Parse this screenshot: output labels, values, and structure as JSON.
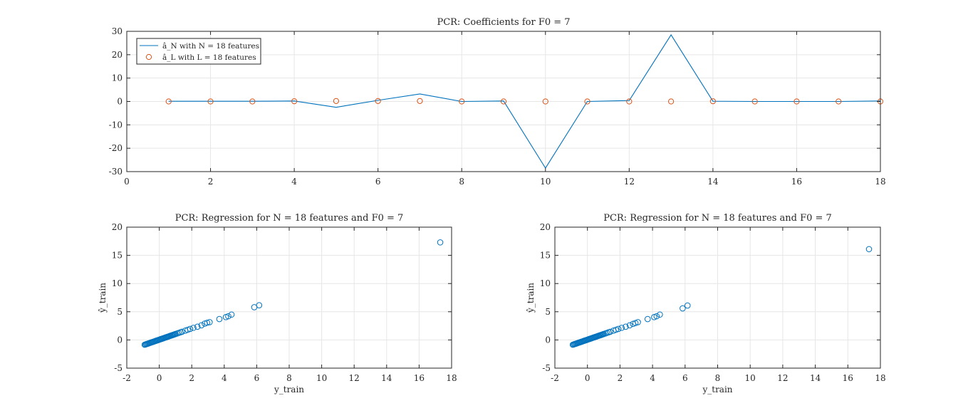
{
  "chart_data": [
    {
      "type": "line",
      "title": "PCR: Coefficients for F0 = 7",
      "xlabel": "",
      "ylabel": "",
      "xlim": [
        0,
        18
      ],
      "ylim": [
        -30,
        30
      ],
      "xticks": [
        0,
        2,
        4,
        6,
        8,
        10,
        12,
        14,
        16,
        18
      ],
      "yticks": [
        -30,
        -20,
        -10,
        0,
        10,
        20,
        30
      ],
      "grid": true,
      "legend_position": "top-left",
      "series": [
        {
          "name": "â_N with N = 18 features",
          "marker": "none",
          "color": "#0072BD",
          "x": [
            1,
            2,
            3,
            4,
            5,
            6,
            7,
            8,
            9,
            10,
            11,
            12,
            13,
            14,
            15,
            16,
            17,
            18
          ],
          "y": [
            0.1,
            0.1,
            0.1,
            0.2,
            -2.5,
            0.5,
            3.2,
            0,
            0.2,
            -28.5,
            0,
            0.4,
            28.5,
            0.1,
            0,
            0,
            0,
            0.2
          ]
        },
        {
          "name": "â_L with L = 18 features",
          "marker": "circle",
          "color": "#D95319",
          "x": [
            1,
            2,
            3,
            4,
            5,
            6,
            7,
            8,
            9,
            10,
            11,
            12,
            13,
            14,
            15,
            16,
            17,
            18
          ],
          "y": [
            0,
            0,
            0,
            0.1,
            0.2,
            0.2,
            0.2,
            0,
            0,
            0,
            0,
            0,
            0,
            0.1,
            0,
            0,
            0,
            0
          ]
        }
      ]
    },
    {
      "type": "scatter",
      "title": "PCR: Regression for N = 18 features and F0 = 7",
      "xlabel": "y_train",
      "ylabel": "ŷ_train",
      "xlim": [
        -2,
        18
      ],
      "ylim": [
        -5,
        20
      ],
      "xticks": [
        -2,
        0,
        2,
        4,
        6,
        8,
        10,
        12,
        14,
        16,
        18
      ],
      "yticks": [
        -5,
        0,
        5,
        10,
        15,
        20
      ],
      "grid": true,
      "color": "#0072BD",
      "x": [
        -0.9,
        -0.85,
        -0.8,
        -0.75,
        -0.7,
        -0.65,
        -0.6,
        -0.55,
        -0.5,
        -0.45,
        -0.4,
        -0.35,
        -0.3,
        -0.25,
        -0.2,
        -0.15,
        -0.1,
        -0.05,
        0,
        0.05,
        0.1,
        0.15,
        0.2,
        0.25,
        0.3,
        0.35,
        0.4,
        0.45,
        0.5,
        0.55,
        0.6,
        0.65,
        0.7,
        0.75,
        0.8,
        0.85,
        0.9,
        0.95,
        1.0,
        1.1,
        1.2,
        1.3,
        1.4,
        1.6,
        1.75,
        1.9,
        2.1,
        2.35,
        2.6,
        2.8,
        2.95,
        3.1,
        3.7,
        4.1,
        4.25,
        4.45,
        5.85,
        6.15,
        17.3
      ],
      "y": [
        -0.85,
        -0.8,
        -0.75,
        -0.7,
        -0.65,
        -0.6,
        -0.55,
        -0.5,
        -0.45,
        -0.4,
        -0.35,
        -0.3,
        -0.25,
        -0.2,
        -0.15,
        -0.1,
        -0.05,
        0,
        0.05,
        0.1,
        0.15,
        0.2,
        0.25,
        0.3,
        0.35,
        0.4,
        0.45,
        0.5,
        0.55,
        0.6,
        0.65,
        0.7,
        0.75,
        0.8,
        0.85,
        0.9,
        0.95,
        1.0,
        1.05,
        1.15,
        1.25,
        1.35,
        1.45,
        1.65,
        1.8,
        1.95,
        2.15,
        2.35,
        2.6,
        2.9,
        3.05,
        3.15,
        3.7,
        4.05,
        4.2,
        4.5,
        5.8,
        6.15,
        17.3
      ]
    },
    {
      "type": "scatter",
      "title": "PCR: Regression for N = 18 features and F0 = 7",
      "xlabel": "y_train",
      "ylabel": "ŷ_train",
      "xlim": [
        -2,
        18
      ],
      "ylim": [
        -5,
        20
      ],
      "xticks": [
        -2,
        0,
        2,
        4,
        6,
        8,
        10,
        12,
        14,
        16,
        18
      ],
      "yticks": [
        -5,
        0,
        5,
        10,
        15,
        20
      ],
      "grid": true,
      "color": "#0072BD",
      "x": [
        -0.9,
        -0.85,
        -0.8,
        -0.75,
        -0.7,
        -0.65,
        -0.6,
        -0.55,
        -0.5,
        -0.45,
        -0.4,
        -0.35,
        -0.3,
        -0.25,
        -0.2,
        -0.15,
        -0.1,
        -0.05,
        0,
        0.05,
        0.1,
        0.15,
        0.2,
        0.25,
        0.3,
        0.35,
        0.4,
        0.45,
        0.5,
        0.55,
        0.6,
        0.65,
        0.7,
        0.75,
        0.8,
        0.85,
        0.9,
        0.95,
        1.0,
        1.1,
        1.2,
        1.3,
        1.4,
        1.6,
        1.75,
        1.9,
        2.1,
        2.35,
        2.6,
        2.8,
        2.95,
        3.1,
        3.7,
        4.1,
        4.25,
        4.45,
        5.85,
        6.15,
        17.3
      ],
      "y": [
        -0.85,
        -0.8,
        -0.75,
        -0.7,
        -0.65,
        -0.6,
        -0.55,
        -0.5,
        -0.45,
        -0.4,
        -0.35,
        -0.3,
        -0.25,
        -0.2,
        -0.15,
        -0.1,
        -0.05,
        0,
        0.05,
        0.1,
        0.15,
        0.2,
        0.25,
        0.3,
        0.35,
        0.4,
        0.45,
        0.5,
        0.55,
        0.6,
        0.65,
        0.7,
        0.75,
        0.8,
        0.85,
        0.9,
        0.95,
        1.0,
        1.05,
        1.15,
        1.25,
        1.35,
        1.45,
        1.65,
        1.8,
        1.95,
        2.15,
        2.35,
        2.6,
        2.85,
        3.0,
        3.15,
        3.7,
        4.05,
        4.2,
        4.5,
        5.6,
        6.1,
        16.1
      ]
    }
  ]
}
